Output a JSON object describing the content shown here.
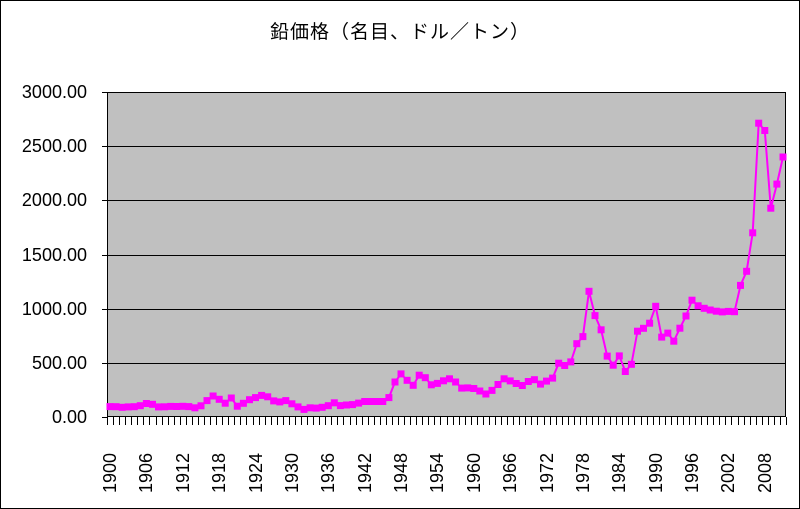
{
  "title": "鉛価格（名目、ドル／トン）",
  "chart_data": {
    "type": "line",
    "title": "鉛価格（名目、ドル／トン）",
    "xlabel": "",
    "ylabel": "",
    "ylim": [
      0,
      3000
    ],
    "y_tick_step": 500,
    "y_tick_labels": [
      "0.00",
      "500.00",
      "1000.00",
      "1500.00",
      "2000.00",
      "2500.00",
      "3000.00"
    ],
    "x_tick_labels": [
      "1900",
      "1906",
      "1912",
      "1918",
      "1924",
      "1930",
      "1936",
      "1942",
      "1948",
      "1954",
      "1960",
      "1966",
      "1972",
      "1978",
      "1984",
      "1990",
      "1996",
      "2002",
      "2008"
    ],
    "grid": "horizontal",
    "legend_position": "none",
    "marker": "square",
    "series": [
      {
        "name": "鉛価格（名目、ドル／トン）",
        "start_year": 1900,
        "end_year": 2011,
        "step": 1,
        "values": [
          96,
          95,
          90,
          93,
          95,
          104,
          125,
          117,
          93,
          94,
          98,
          97,
          99,
          96,
          85,
          103,
          151,
          194,
          163,
          127,
          175,
          100,
          126,
          160,
          179,
          199,
          186,
          149,
          139,
          151,
          122,
          93,
          70,
          85,
          82,
          90,
          104,
          131,
          105,
          111,
          114,
          128,
          143,
          143,
          143,
          143,
          179,
          323,
          398,
          339,
          293,
          386,
          363,
          297,
          310,
          334,
          353,
          323,
          267,
          269,
          263,
          240,
          212,
          246,
          300,
          353,
          333,
          309,
          291,
          328,
          344,
          304,
          331,
          359,
          497,
          475,
          509,
          677,
          742,
          1160,
          936,
          805,
          562,
          478,
          564,
          420,
          486,
          792,
          819,
          866,
          1022,
          738,
          774,
          700,
          820,
          932,
          1078,
          1026,
          1003,
          988,
          977,
          970,
          975,
          972,
          1215,
          1345,
          1700,
          2712,
          2645,
          1927,
          2150,
          2400
        ]
      }
    ],
    "colors": {
      "line": "#FF00FF",
      "marker": "#FF00FF",
      "plot_background": "#C0C0C0",
      "gridline": "#000000",
      "axis": "#000000",
      "text": "#000000",
      "chart_background": "#FFFFFF"
    }
  }
}
